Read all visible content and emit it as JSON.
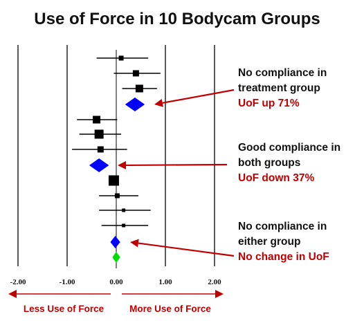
{
  "chart_data": {
    "type": "forest",
    "title": "Use of Force in 10 Bodycam Groups",
    "x_ticks": [
      "-2.00",
      "-1.00",
      "0.00",
      "1.00",
      "2.00"
    ],
    "x_tick_values": [
      -2,
      -1,
      0,
      1,
      2
    ],
    "xlim": [
      -2.0,
      2.0
    ],
    "reference_lines": [
      -2,
      -1,
      1,
      2
    ],
    "studies": [
      {
        "estimate": 0.1,
        "ci": [
          -0.4,
          0.65
        ],
        "weight": 2
      },
      {
        "estimate": 0.4,
        "ci": [
          -0.05,
          0.9
        ],
        "weight": 3
      },
      {
        "estimate": 0.47,
        "ci": [
          0.12,
          0.83
        ],
        "weight": 4
      },
      {
        "estimate": -0.4,
        "ci": [
          -0.8,
          0.02
        ],
        "weight": 4
      },
      {
        "estimate": -0.35,
        "ci": [
          -0.75,
          0.1
        ],
        "weight": 5
      },
      {
        "estimate": -0.32,
        "ci": [
          -0.9,
          0.22
        ],
        "weight": 3
      },
      {
        "estimate": -0.05,
        "ci": [
          -0.1,
          0.02
        ],
        "weight": 6
      },
      {
        "estimate": 0.02,
        "ci": [
          -0.35,
          0.45
        ],
        "weight": 2
      },
      {
        "estimate": 0.15,
        "ci": [
          -0.35,
          0.7
        ],
        "weight": 1
      },
      {
        "estimate": 0.15,
        "ci": [
          -0.3,
          0.65
        ],
        "weight": 1
      }
    ],
    "pooled": [
      {
        "estimate": 0.38,
        "ci": [
          0.18,
          0.58
        ],
        "color": "#0000ff"
      },
      {
        "estimate": -0.35,
        "ci": [
          -0.55,
          -0.15
        ],
        "color": "#0000ff"
      },
      {
        "estimate": -0.02,
        "ci": [
          -0.12,
          0.08
        ],
        "color": "#0000ff"
      },
      {
        "estimate": 0.0,
        "ci": [
          -0.08,
          0.08
        ],
        "color": "#00dd00"
      }
    ],
    "annotations": [
      {
        "lines": [
          "No compliance in",
          "treatment group"
        ],
        "highlight": "UoF up 71%"
      },
      {
        "lines": [
          "Good compliance in",
          "both groups"
        ],
        "highlight": "UoF down 37%"
      },
      {
        "lines": [
          "No compliance in",
          "either group"
        ],
        "highlight": "No change in UoF"
      }
    ],
    "direction_labels": {
      "left": "Less Use of Force",
      "right": "More Use of Force"
    },
    "colors": {
      "accent": "#c00000",
      "marker": "#000000",
      "pooled_blue": "#0000ff",
      "pooled_green": "#00dd00"
    }
  }
}
